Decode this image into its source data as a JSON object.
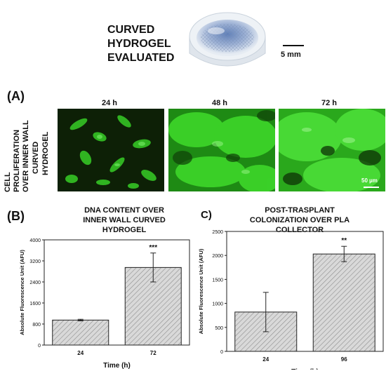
{
  "top": {
    "title_lines": [
      "CURVED",
      "HYDROGEL",
      "EVALUATED"
    ],
    "scale_label": "5 mm"
  },
  "panel_a": {
    "label": "(A)",
    "side_label_lines": [
      "CELL",
      "PROLIFERATION",
      "OVER INNER WALL",
      "CURVED",
      "HYDROGEL"
    ],
    "time_labels": [
      "24 h",
      "48 h",
      "72 h"
    ],
    "scale_label": "50 µm",
    "colors": {
      "fluorescence": "#39d62a",
      "background": "#0b1a05"
    }
  },
  "panel_b": {
    "label": "(B)",
    "title_lines": [
      "DNA CONTENT OVER",
      "INNER WALL CURVED",
      "HYDROGEL"
    ]
  },
  "panel_c": {
    "label": "C)",
    "title_lines": [
      "POST-TRASPLANT",
      "COLONIZATION OVER PLA",
      "COLLECTOR"
    ]
  },
  "chart_data": [
    {
      "type": "bar",
      "categories": [
        "24",
        "72"
      ],
      "values": [
        950,
        2950
      ],
      "errors": [
        30,
        550
      ],
      "significance": [
        "",
        "***"
      ],
      "xlabel": "Time (h)",
      "ylabel": "Absolute Fluorescence Unit (AFU)",
      "ylim": [
        0,
        4000
      ],
      "yticks": [
        0,
        800,
        1600,
        2400,
        3200,
        4000
      ],
      "grid": false,
      "bar_fill": "hatched-gray"
    },
    {
      "type": "bar",
      "categories": [
        "24",
        "96"
      ],
      "values": [
        820,
        2030
      ],
      "errors": [
        410,
        160
      ],
      "significance": [
        "",
        "**"
      ],
      "xlabel": "Time (h)",
      "ylabel": "Absolute Fluorescence Unit (AFU)",
      "ylim": [
        0,
        2500
      ],
      "yticks": [
        0,
        500,
        1000,
        1500,
        2000,
        2500
      ],
      "grid": false,
      "bar_fill": "hatched-gray"
    }
  ]
}
